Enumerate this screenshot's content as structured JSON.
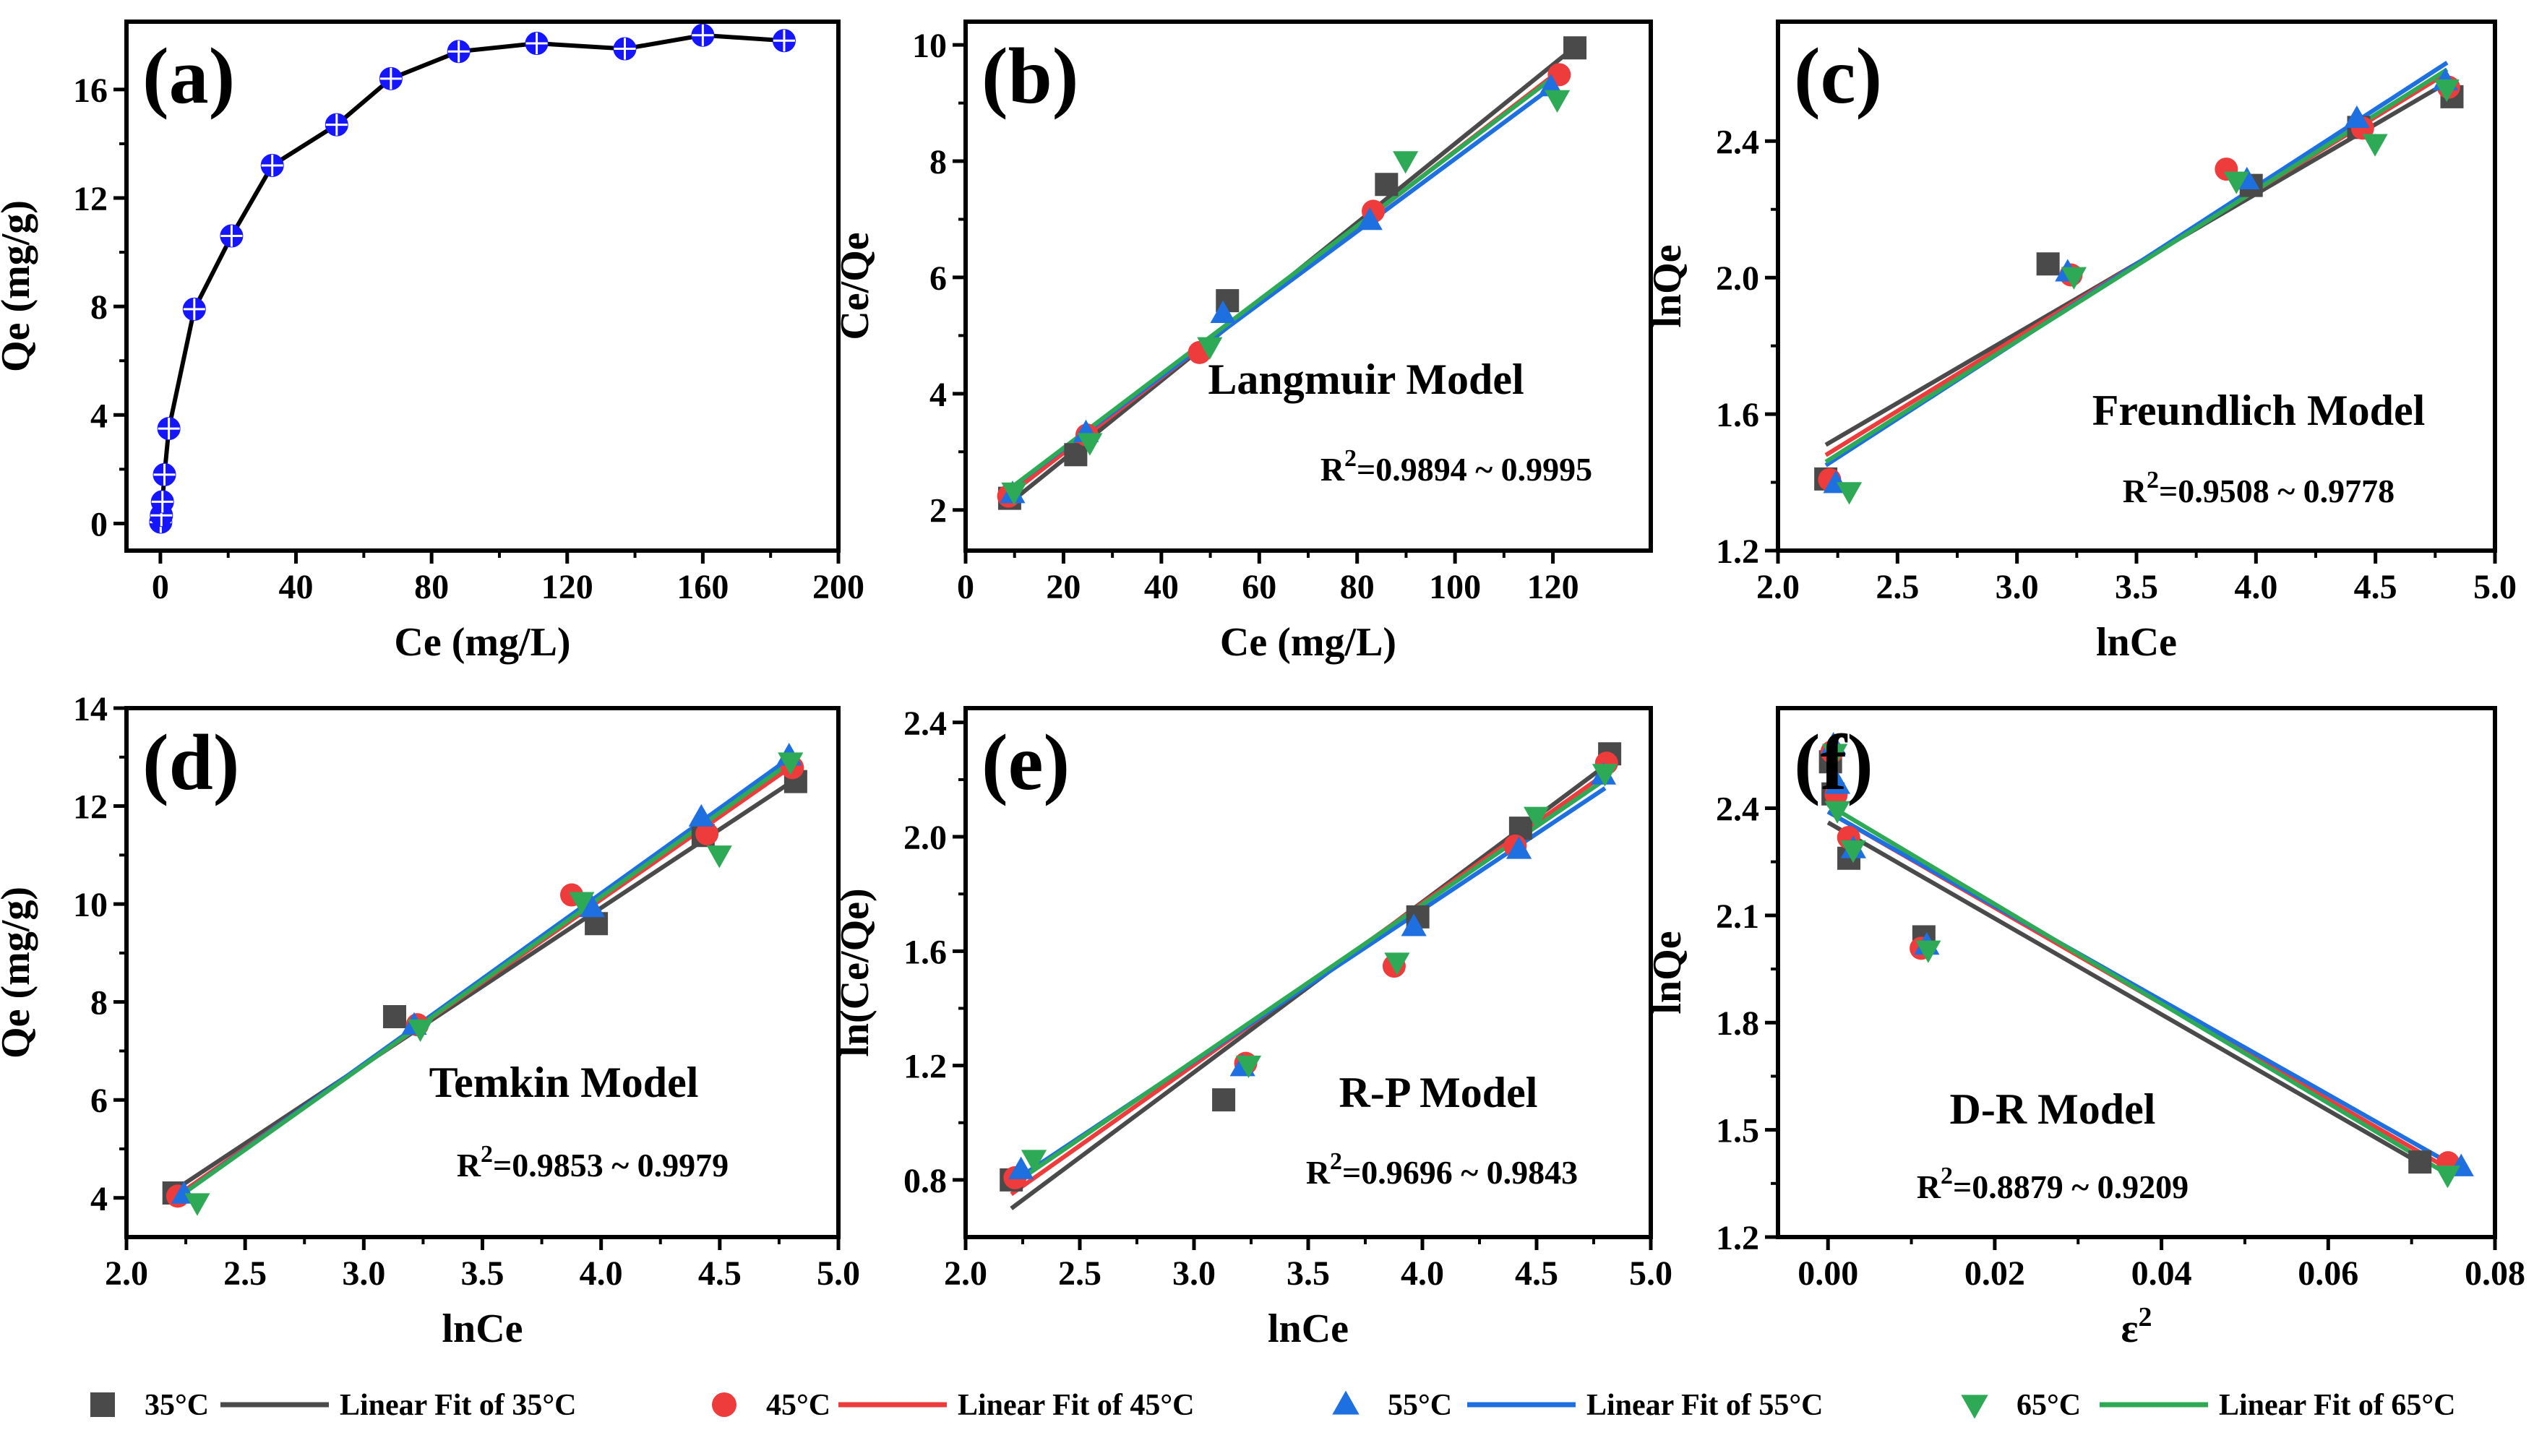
{
  "colors": {
    "35C": "#4a4a4a",
    "45C": "#ee3b3b",
    "55C": "#1e6fe0",
    "65C": "#2eaa57",
    "panel_a": "#1515ff",
    "axis": "#000000"
  },
  "legend": {
    "items": [
      {
        "key": "35C",
        "marker": "square",
        "label": "35°C"
      },
      {
        "key": "35C",
        "marker": "line",
        "label": "Linear Fit of 35°C"
      },
      {
        "key": "45C",
        "marker": "circle",
        "label": "45°C"
      },
      {
        "key": "45C",
        "marker": "line",
        "label": "Linear Fit of 45°C"
      },
      {
        "key": "55C",
        "marker": "triangle-up",
        "label": "55°C"
      },
      {
        "key": "55C",
        "marker": "line",
        "label": "Linear Fit of 55°C"
      },
      {
        "key": "65C",
        "marker": "triangle-down",
        "label": "65°C"
      },
      {
        "key": "65C",
        "marker": "line",
        "label": "Linear Fit of 65°C"
      }
    ]
  },
  "chart_data": [
    {
      "id": "a",
      "type": "line",
      "letter": "(a)",
      "xlabel": "Ce (mg/L)",
      "ylabel": "Qe (mg/g)",
      "model": "",
      "r2": "",
      "xlim": [
        -10,
        200
      ],
      "ylim": [
        -1,
        18.5
      ],
      "xticks": [
        0,
        40,
        80,
        120,
        160,
        200
      ],
      "xtick_labels": [
        "0",
        "40",
        "80",
        "120",
        "160",
        "200"
      ],
      "yticks": [
        0,
        4,
        8,
        12,
        16
      ],
      "ytick_labels": [
        "0",
        "4",
        "8",
        "12",
        "16"
      ],
      "series": [
        {
          "color_key": "panel_a",
          "marker": "crossed-circle",
          "connect": true,
          "x": [
            0.1,
            0.3,
            0.6,
            1.2,
            2.5,
            10,
            21,
            33,
            52,
            68,
            88,
            111,
            137,
            160,
            184
          ],
          "y": [
            0.05,
            0.3,
            0.8,
            1.8,
            3.5,
            7.9,
            10.6,
            13.2,
            14.7,
            16.4,
            17.4,
            17.7,
            17.5,
            18.0,
            17.8
          ]
        }
      ]
    },
    {
      "id": "b",
      "type": "scatter",
      "letter": "(b)",
      "xlabel": "Ce (mg/L)",
      "ylabel": "Ce/Qe",
      "model": "Langmuir Model",
      "r2": "=0.9894 ~ 0.9995",
      "xlim": [
        0,
        140
      ],
      "ylim": [
        1.3,
        10.4
      ],
      "xticks": [
        0,
        20,
        40,
        60,
        80,
        100,
        120
      ],
      "xtick_labels": [
        "0",
        "20",
        "40",
        "60",
        "80",
        "100",
        "120"
      ],
      "yticks": [
        2,
        4,
        6,
        8,
        10
      ],
      "ytick_labels": [
        "2",
        "4",
        "6",
        "8",
        "10"
      ],
      "series": [
        {
          "color_key": "35C",
          "marker": "square",
          "x": [
            9,
            22.5,
            53.5,
            86,
            124.5
          ],
          "y": [
            2.2,
            2.95,
            5.6,
            7.6,
            9.95
          ],
          "fit": [
            [
              8,
              2.05
            ],
            [
              125,
              10.0
            ]
          ]
        },
        {
          "color_key": "45C",
          "marker": "circle",
          "x": [
            8.5,
            24.5,
            47.5,
            83,
            121
          ],
          "y": [
            2.25,
            3.3,
            4.72,
            7.15,
            9.5
          ],
          "fit": [
            [
              8,
              2.2
            ],
            [
              122,
              9.6
            ]
          ]
        },
        {
          "color_key": "55C",
          "marker": "triangle-up",
          "x": [
            9,
            24,
            52,
            82,
            119
          ],
          "y": [
            2.3,
            3.35,
            5.4,
            7.0,
            9.3
          ],
          "fit": [
            [
              8,
              2.3
            ],
            [
              121,
              9.35
            ]
          ]
        },
        {
          "color_key": "65C",
          "marker": "triangle-down",
          "x": [
            9,
            24.5,
            49,
            89,
            120
          ],
          "y": [
            2.35,
            3.2,
            4.85,
            8.05,
            9.1
          ],
          "fit": [
            [
              8,
              2.3
            ],
            [
              121,
              9.5
            ]
          ]
        }
      ]
    },
    {
      "id": "c",
      "type": "scatter",
      "letter": "(c)",
      "xlabel": "lnCe",
      "ylabel": "lnQe",
      "model": "Freundlich Model",
      "r2": "=0.9508 ~ 0.9778",
      "xlim": [
        2.0,
        5.0
      ],
      "ylim": [
        1.2,
        2.75
      ],
      "xticks": [
        2.0,
        2.5,
        3.0,
        3.5,
        4.0,
        4.5,
        5.0
      ],
      "xtick_labels": [
        "2.0",
        "2.5",
        "3.0",
        "3.5",
        "4.0",
        "4.5",
        "5.0"
      ],
      "yticks": [
        1.2,
        1.6,
        2.0,
        2.4
      ],
      "ytick_labels": [
        "1.2",
        "1.6",
        "2.0",
        "2.4"
      ],
      "series": [
        {
          "color_key": "35C",
          "marker": "square",
          "x": [
            2.2,
            3.13,
            3.98,
            4.43,
            4.82
          ],
          "y": [
            1.41,
            2.04,
            2.27,
            2.44,
            2.53
          ],
          "fit": [
            [
              2.2,
              1.51
            ],
            [
              4.82,
              2.58
            ]
          ]
        },
        {
          "color_key": "45C",
          "marker": "circle",
          "x": [
            2.21,
            3.22,
            3.87,
            4.44,
            4.8
          ],
          "y": [
            1.41,
            2.01,
            2.32,
            2.44,
            2.56
          ],
          "fit": [
            [
              2.2,
              1.48
            ],
            [
              4.8,
              2.6
            ]
          ]
        },
        {
          "color_key": "55C",
          "marker": "triangle-up",
          "x": [
            2.23,
            3.2,
            3.95,
            4.41,
            4.78
          ],
          "y": [
            1.4,
            2.02,
            2.29,
            2.47,
            2.58
          ],
          "fit": [
            [
              2.2,
              1.45
            ],
            [
              4.8,
              2.63
            ]
          ]
        },
        {
          "color_key": "65C",
          "marker": "triangle-down",
          "x": [
            2.28,
            3.22,
            3.9,
            4.48,
            4.78
          ],
          "y": [
            1.38,
            2.01,
            2.29,
            2.4,
            2.56
          ],
          "fit": [
            [
              2.2,
              1.46
            ],
            [
              4.8,
              2.61
            ]
          ]
        }
      ]
    },
    {
      "id": "d",
      "type": "scatter",
      "letter": "(d)",
      "xlabel": "lnCe",
      "ylabel": "Qe (mg/g)",
      "model": "Temkin Model",
      "r2": "=0.9853 ~ 0.9979",
      "xlim": [
        2.0,
        5.0
      ],
      "ylim": [
        3.2,
        14
      ],
      "xticks": [
        2.0,
        2.5,
        3.0,
        3.5,
        4.0,
        4.5,
        5.0
      ],
      "xtick_labels": [
        "2.0",
        "2.5",
        "3.0",
        "3.5",
        "4.0",
        "4.5",
        "5.0"
      ],
      "yticks": [
        4,
        6,
        8,
        10,
        12,
        14
      ],
      "ytick_labels": [
        "4",
        "6",
        "8",
        "10",
        "12",
        "14"
      ],
      "series": [
        {
          "color_key": "35C",
          "marker": "square",
          "x": [
            2.2,
            3.13,
            3.98,
            4.43,
            4.82
          ],
          "y": [
            4.1,
            7.7,
            9.6,
            11.4,
            12.5
          ],
          "fit": [
            [
              2.2,
              4.15
            ],
            [
              4.82,
              12.55
            ]
          ]
        },
        {
          "color_key": "45C",
          "marker": "circle",
          "x": [
            2.21,
            3.22,
            3.87,
            4.44,
            4.8
          ],
          "y": [
            4.05,
            7.55,
            10.2,
            11.45,
            12.8
          ],
          "fit": [
            [
              2.2,
              4.0
            ],
            [
              4.8,
              12.8
            ]
          ]
        },
        {
          "color_key": "55C",
          "marker": "triangle-up",
          "x": [
            2.23,
            3.2,
            3.95,
            4.41,
            4.78
          ],
          "y": [
            4.1,
            7.55,
            9.95,
            11.8,
            13.05
          ],
          "fit": [
            [
              2.2,
              3.95
            ],
            [
              4.8,
              13.0
            ]
          ]
        },
        {
          "color_key": "65C",
          "marker": "triangle-down",
          "x": [
            2.28,
            3.22,
            3.9,
            4.48,
            4.78
          ],
          "y": [
            3.95,
            7.5,
            10.1,
            11.05,
            12.95
          ],
          "fit": [
            [
              2.2,
              3.95
            ],
            [
              4.8,
              12.9
            ]
          ]
        }
      ]
    },
    {
      "id": "e",
      "type": "scatter",
      "letter": "(e)",
      "xlabel": "lnCe",
      "ylabel": "ln(Ce/Qe)",
      "model": "R-P Model",
      "r2": "=0.9696 ~ 0.9843",
      "xlim": [
        2.0,
        5.0
      ],
      "ylim": [
        0.6,
        2.45
      ],
      "xticks": [
        2.0,
        2.5,
        3.0,
        3.5,
        4.0,
        4.5,
        5.0
      ],
      "xtick_labels": [
        "2.0",
        "2.5",
        "3.0",
        "3.5",
        "4.0",
        "4.5",
        "5.0"
      ],
      "yticks": [
        0.8,
        1.2,
        1.6,
        2.0,
        2.4
      ],
      "ytick_labels": [
        "0.8",
        "1.2",
        "1.6",
        "2.0",
        "2.4"
      ],
      "series": [
        {
          "color_key": "35C",
          "marker": "square",
          "x": [
            2.2,
            3.13,
            3.98,
            4.43,
            4.82
          ],
          "y": [
            0.8,
            1.08,
            1.72,
            2.03,
            2.29
          ],
          "fit": [
            [
              2.2,
              0.7
            ],
            [
              4.82,
              2.26
            ]
          ]
        },
        {
          "color_key": "45C",
          "marker": "circle",
          "x": [
            2.21,
            3.22,
            3.87,
            4.4,
            4.8
          ],
          "y": [
            0.81,
            1.21,
            1.55,
            1.97,
            2.26
          ],
          "fit": [
            [
              2.2,
              0.75
            ],
            [
              4.8,
              2.22
            ]
          ]
        },
        {
          "color_key": "55C",
          "marker": "triangle-up",
          "x": [
            2.23,
            3.2,
            3.95,
            4.41,
            4.78
          ],
          "y": [
            0.84,
            1.2,
            1.69,
            1.96,
            2.22
          ],
          "fit": [
            [
              2.2,
              0.79
            ],
            [
              4.8,
              2.17
            ]
          ]
        },
        {
          "color_key": "65C",
          "marker": "triangle-down",
          "x": [
            2.28,
            3.22,
            3.87,
            4.48,
            4.78
          ],
          "y": [
            0.88,
            1.21,
            1.57,
            2.08,
            2.23
          ],
          "fit": [
            [
              2.2,
              0.78
            ],
            [
              4.8,
              2.2
            ]
          ]
        }
      ]
    },
    {
      "id": "f",
      "type": "scatter",
      "letter": "(f)",
      "xlabel": "ε",
      "xlabel_sup": "2",
      "ylabel": "lnQe",
      "model": "D-R Model",
      "r2": "=0.8879 ~ 0.9209",
      "xlim": [
        -0.006,
        0.08
      ],
      "ylim": [
        1.2,
        2.68
      ],
      "xticks": [
        0.0,
        0.02,
        0.04,
        0.06,
        0.08
      ],
      "xtick_labels": [
        "0.00",
        "0.02",
        "0.04",
        "0.06",
        "0.08"
      ],
      "yticks": [
        1.2,
        1.5,
        1.8,
        2.1,
        2.4
      ],
      "ytick_labels": [
        "1.2",
        "1.5",
        "1.8",
        "2.1",
        "2.4"
      ],
      "series": [
        {
          "color_key": "35C",
          "marker": "square",
          "x": [
            0.0003,
            0.0006,
            0.0025,
            0.0115,
            0.071
          ],
          "y": [
            2.53,
            2.44,
            2.26,
            2.04,
            1.41
          ],
          "fit": [
            [
              0.0,
              2.36
            ],
            [
              0.0715,
              1.4
            ]
          ]
        },
        {
          "color_key": "45C",
          "marker": "circle",
          "x": [
            0.0003,
            0.0008,
            0.0023,
            0.011,
            0.0742
          ],
          "y": [
            2.56,
            2.44,
            2.32,
            2.01,
            1.41
          ],
          "fit": [
            [
              0.0,
              2.39
            ],
            [
              0.0745,
              1.39
            ]
          ]
        },
        {
          "color_key": "55C",
          "marker": "triangle-up",
          "x": [
            0.0003,
            0.0008,
            0.0027,
            0.0115,
            0.0756
          ],
          "y": [
            2.58,
            2.47,
            2.29,
            2.02,
            1.4
          ],
          "fit": [
            [
              0.0,
              2.39
            ],
            [
              0.0758,
              1.39
            ]
          ]
        },
        {
          "color_key": "65C",
          "marker": "triangle-down",
          "x": [
            0.0003,
            0.0006,
            0.0025,
            0.0115,
            0.0738
          ],
          "y": [
            2.56,
            2.4,
            2.29,
            2.01,
            1.38
          ],
          "fit": [
            [
              0.0,
              2.41
            ],
            [
              0.074,
              1.38
            ]
          ]
        }
      ]
    }
  ]
}
